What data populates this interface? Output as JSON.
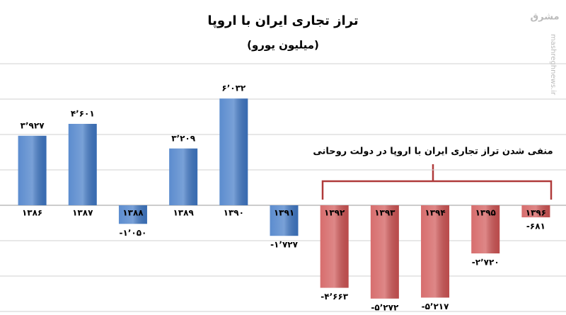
{
  "chart_data": {
    "type": "bar",
    "title": "تراز تجاری ایران با اروپا",
    "subtitle": "(میلیون یورو)",
    "annotation": "منفی شدن تراز تجاری ایران با اروپا در دولت روحانی",
    "watermark": "mashreghnews.ir",
    "logo": "مشرق",
    "categories": [
      "۱۳۸۶",
      "۱۳۸۷",
      "۱۳۸۸",
      "۱۳۸۹",
      "۱۳۹۰",
      "۱۳۹۱",
      "۱۳۹۲",
      "۱۳۹۳",
      "۱۳۹۴",
      "۱۳۹۵",
      "۱۳۹۶"
    ],
    "values": [
      3927,
      4601,
      -1050,
      3209,
      6032,
      -1727,
      -4663,
      -5272,
      -5217,
      -2720,
      -681
    ],
    "value_labels": [
      "۳٬۹۲۷",
      "۴٬۶۰۱",
      "-۱٬۰۵۰",
      "۳٬۲۰۹",
      "۶٬۰۳۲",
      "-۱٬۷۲۷",
      "-۴٬۶۶۳",
      "-۵٬۲۷۲",
      "-۵٬۲۱۷",
      "-۲٬۷۲۰",
      "-۶۸۱"
    ],
    "colors": [
      "#3f78c6",
      "#3f78c6",
      "#3f78c6",
      "#3f78c6",
      "#3f78c6",
      "#3f78c6",
      "#d05454",
      "#d05454",
      "#d05454",
      "#d05454",
      "#d05454"
    ],
    "ylim": [
      -6200,
      8000
    ],
    "yticks": [
      -6000,
      -4000,
      -2000,
      0,
      2000,
      4000,
      6000,
      8000
    ],
    "ytick_labels": false,
    "grid": true
  }
}
